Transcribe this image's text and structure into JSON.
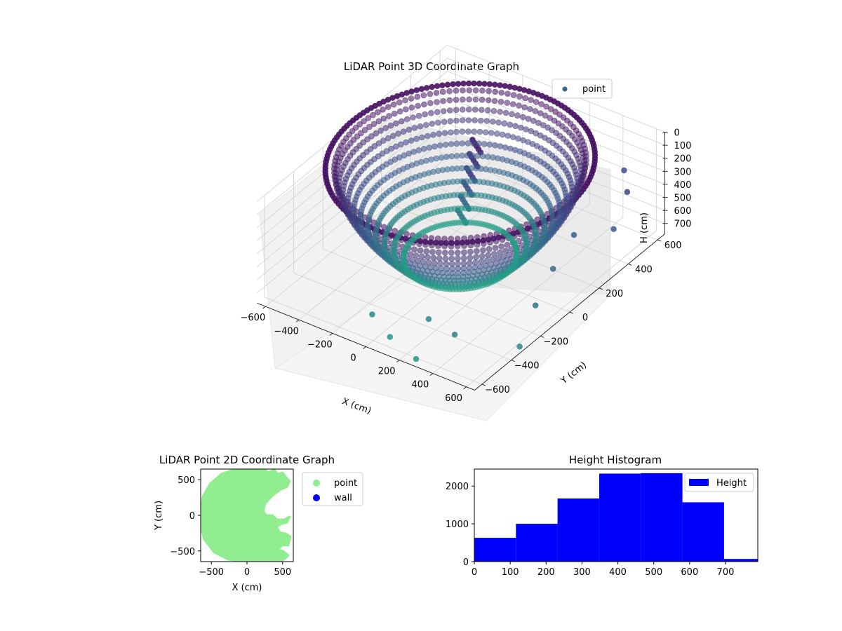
{
  "colors": {
    "histogram_fill": "#0000ff",
    "point_2d": "#90ee90",
    "wall_2d": "#0000ff",
    "legend_point_3d": "#2f6792",
    "viridis_top": "#46095c",
    "viridis_mid": "#3b528b",
    "viridis_bottom": "#21a585"
  },
  "chart_data": [
    {
      "type": "scatter",
      "projection": "3d",
      "title": "LiDAR Point 3D Coordinate Graph",
      "xlabel": "X (cm)",
      "ylabel": "Y (cm)",
      "zlabel": "H (cm)",
      "x_ticks": [
        "−600",
        "−400",
        "−200",
        "0",
        "200",
        "400",
        "600"
      ],
      "y_ticks": [
        "−600",
        "−400",
        "−200",
        "0",
        "200",
        "400",
        "600"
      ],
      "z_ticks": [
        "0",
        "100",
        "200",
        "300",
        "400",
        "500",
        "600",
        "700"
      ],
      "xlim": [
        -650,
        650
      ],
      "ylim": [
        -650,
        650
      ],
      "zlim": [
        0,
        780
      ],
      "z_inverted": true,
      "colormap": "viridis",
      "legend": {
        "entries": [
          "point"
        ],
        "placement": "top-right"
      },
      "description_shape": "ellipsoidal ring of points around room walls",
      "outliers": [
        {
          "x": 600,
          "y": 450,
          "h": 300
        },
        {
          "x": 650,
          "y": 300,
          "h": 420
        },
        {
          "x": 620,
          "y": -200,
          "h": 560
        },
        {
          "x": 400,
          "y": -500,
          "h": 620
        },
        {
          "x": 200,
          "y": -450,
          "h": 650
        },
        {
          "x": 100,
          "y": -600,
          "h": 700
        },
        {
          "x": 300,
          "y": -650,
          "h": 720
        },
        {
          "x": -50,
          "y": -550,
          "h": 650
        },
        {
          "x": 500,
          "y": 200,
          "h": 450
        },
        {
          "x": 550,
          "y": 0,
          "h": 500
        },
        {
          "x": 700,
          "y": -400,
          "h": 650
        },
        {
          "x": 450,
          "y": 600,
          "h": 350
        }
      ]
    },
    {
      "type": "scatter",
      "title": "LiDAR Point 2D Coordinate Graph",
      "xlabel": "X (cm)",
      "ylabel": "Y (cm)",
      "x_ticks": [
        "−500",
        "0",
        "500"
      ],
      "y_ticks": [
        "500",
        "0",
        "−500"
      ],
      "xlim": [
        -650,
        650
      ],
      "ylim": [
        -650,
        650
      ],
      "legend": {
        "entries": [
          "point",
          "wall"
        ],
        "placement": "outside-right"
      },
      "series": [
        {
          "name": "point",
          "region": [
            [
              -650,
              60
            ],
            [
              -620,
              260
            ],
            [
              -520,
              440
            ],
            [
              -360,
              580
            ],
            [
              -160,
              650
            ],
            [
              40,
              660
            ],
            [
              160,
              640
            ],
            [
              230,
              660
            ],
            [
              300,
              600
            ],
            [
              380,
              640
            ],
            [
              430,
              580
            ],
            [
              500,
              600
            ],
            [
              560,
              520
            ],
            [
              600,
              480
            ],
            [
              560,
              400
            ],
            [
              470,
              360
            ],
            [
              360,
              280
            ],
            [
              250,
              160
            ],
            [
              230,
              60
            ],
            [
              270,
              0
            ],
            [
              360,
              0
            ],
            [
              420,
              -60
            ],
            [
              520,
              -60
            ],
            [
              600,
              -20
            ],
            [
              560,
              -100
            ],
            [
              480,
              -120
            ],
            [
              420,
              -160
            ],
            [
              460,
              -240
            ],
            [
              550,
              -260
            ],
            [
              610,
              -300
            ],
            [
              580,
              -420
            ],
            [
              500,
              -420
            ],
            [
              430,
              -480
            ],
            [
              500,
              -500
            ],
            [
              580,
              -560
            ],
            [
              520,
              -620
            ],
            [
              400,
              -650
            ],
            [
              200,
              -650
            ],
            [
              -40,
              -650
            ],
            [
              -260,
              -620
            ],
            [
              -460,
              -520
            ],
            [
              -600,
              -340
            ],
            [
              -650,
              -150
            ]
          ]
        },
        {
          "name": "wall",
          "region": []
        }
      ]
    },
    {
      "type": "bar",
      "subtype": "histogram",
      "title": "Height Histogram",
      "xlabel": "",
      "ylabel": "",
      "x_ticks": [
        "0",
        "100",
        "200",
        "300",
        "400",
        "500",
        "600",
        "700"
      ],
      "y_ticks": [
        "0",
        "1000",
        "2000"
      ],
      "xlim": [
        0,
        790
      ],
      "ylim": [
        0,
        2450
      ],
      "bins": [
        {
          "x0": 0,
          "x1": 116,
          "count": 630
        },
        {
          "x0": 116,
          "x1": 232,
          "count": 1000
        },
        {
          "x0": 232,
          "x1": 348,
          "count": 1670
        },
        {
          "x0": 348,
          "x1": 464,
          "count": 2330
        },
        {
          "x0": 464,
          "x1": 580,
          "count": 2340
        },
        {
          "x0": 580,
          "x1": 696,
          "count": 1570
        },
        {
          "x0": 696,
          "x1": 790,
          "count": 70
        }
      ],
      "legend": {
        "entries": [
          "Height"
        ],
        "placement": "top-right"
      }
    }
  ]
}
